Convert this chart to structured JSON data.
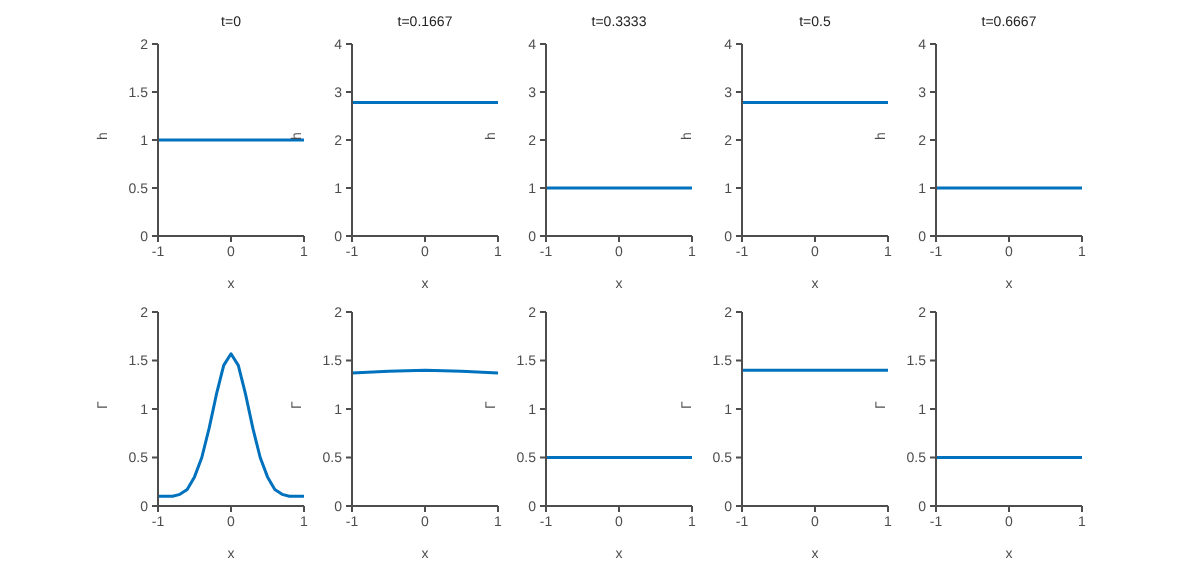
{
  "chart_data": [
    {
      "type": "line",
      "title": "t=0",
      "xlabel": "x",
      "ylabel": "h",
      "x": [
        -1,
        1
      ],
      "series": [
        {
          "color": "#0072bd",
          "values": [
            1,
            1
          ]
        }
      ],
      "xlim": [
        -1,
        1
      ],
      "xticks": [
        -1,
        0,
        1
      ],
      "ylim": [
        0,
        2
      ],
      "yticks": [
        0,
        0.5,
        1,
        1.5,
        2
      ],
      "grid": false
    },
    {
      "type": "line",
      "title": "t=0.1667",
      "xlabel": "x",
      "ylabel": "h",
      "x": [
        -1,
        1
      ],
      "series": [
        {
          "color": "#0072bd",
          "values": [
            2.78,
            2.78
          ]
        }
      ],
      "xlim": [
        -1,
        1
      ],
      "xticks": [
        -1,
        0,
        1
      ],
      "ylim": [
        0,
        4
      ],
      "yticks": [
        0,
        1,
        2,
        3,
        4
      ],
      "grid": false
    },
    {
      "type": "line",
      "title": "t=0.3333",
      "xlabel": "x",
      "ylabel": "h",
      "x": [
        -1,
        1
      ],
      "series": [
        {
          "color": "#0072bd",
          "values": [
            1,
            1
          ]
        }
      ],
      "xlim": [
        -1,
        1
      ],
      "xticks": [
        -1,
        0,
        1
      ],
      "ylim": [
        0,
        4
      ],
      "yticks": [
        0,
        1,
        2,
        3,
        4
      ],
      "grid": false
    },
    {
      "type": "line",
      "title": "t=0.5",
      "xlabel": "x",
      "ylabel": "h",
      "x": [
        -1,
        1
      ],
      "series": [
        {
          "color": "#0072bd",
          "values": [
            2.78,
            2.78
          ]
        }
      ],
      "xlim": [
        -1,
        1
      ],
      "xticks": [
        -1,
        0,
        1
      ],
      "ylim": [
        0,
        4
      ],
      "yticks": [
        0,
        1,
        2,
        3,
        4
      ],
      "grid": false
    },
    {
      "type": "line",
      "title": "t=0.6667",
      "xlabel": "x",
      "ylabel": "h",
      "x": [
        -1,
        1
      ],
      "series": [
        {
          "color": "#0072bd",
          "values": [
            1,
            1
          ]
        }
      ],
      "xlim": [
        -1,
        1
      ],
      "xticks": [
        -1,
        0,
        1
      ],
      "ylim": [
        0,
        4
      ],
      "yticks": [
        0,
        1,
        2,
        3,
        4
      ],
      "grid": false
    },
    {
      "type": "line",
      "xlabel": "x",
      "ylabel": "Γ",
      "x": [
        -1,
        -0.9,
        -0.8,
        -0.7,
        -0.6,
        -0.5,
        -0.4,
        -0.3,
        -0.2,
        -0.1,
        0,
        0.1,
        0.2,
        0.3,
        0.4,
        0.5,
        0.6,
        0.7,
        0.8,
        0.9,
        1
      ],
      "series": [
        {
          "color": "#0072bd",
          "values": [
            0.1,
            0.1,
            0.1,
            0.12,
            0.17,
            0.3,
            0.5,
            0.8,
            1.15,
            1.45,
            1.57,
            1.45,
            1.15,
            0.8,
            0.5,
            0.3,
            0.17,
            0.12,
            0.1,
            0.1,
            0.1
          ]
        }
      ],
      "xlim": [
        -1,
        1
      ],
      "xticks": [
        -1,
        0,
        1
      ],
      "ylim": [
        0,
        2
      ],
      "yticks": [
        0,
        0.5,
        1,
        1.5,
        2
      ],
      "grid": false
    },
    {
      "type": "line",
      "xlabel": "x",
      "ylabel": "Γ",
      "x": [
        -1,
        -0.5,
        0,
        0.5,
        1
      ],
      "series": [
        {
          "color": "#0072bd",
          "values": [
            1.37,
            1.39,
            1.4,
            1.39,
            1.37
          ]
        }
      ],
      "xlim": [
        -1,
        1
      ],
      "xticks": [
        -1,
        0,
        1
      ],
      "ylim": [
        0,
        2
      ],
      "yticks": [
        0,
        0.5,
        1,
        1.5,
        2
      ],
      "grid": false
    },
    {
      "type": "line",
      "xlabel": "x",
      "ylabel": "Γ",
      "x": [
        -1,
        1
      ],
      "series": [
        {
          "color": "#0072bd",
          "values": [
            0.5,
            0.5
          ]
        }
      ],
      "xlim": [
        -1,
        1
      ],
      "xticks": [
        -1,
        0,
        1
      ],
      "ylim": [
        0,
        2
      ],
      "yticks": [
        0,
        0.5,
        1,
        1.5,
        2
      ],
      "grid": false
    },
    {
      "type": "line",
      "xlabel": "x",
      "ylabel": "Γ",
      "x": [
        -1,
        1
      ],
      "series": [
        {
          "color": "#0072bd",
          "values": [
            1.4,
            1.4
          ]
        }
      ],
      "xlim": [
        -1,
        1
      ],
      "xticks": [
        -1,
        0,
        1
      ],
      "ylim": [
        0,
        2
      ],
      "yticks": [
        0,
        0.5,
        1,
        1.5,
        2
      ],
      "grid": false
    },
    {
      "type": "line",
      "xlabel": "x",
      "ylabel": "Γ",
      "x": [
        -1,
        1
      ],
      "series": [
        {
          "color": "#0072bd",
          "values": [
            0.5,
            0.5
          ]
        }
      ],
      "xlim": [
        -1,
        1
      ],
      "xticks": [
        -1,
        0,
        1
      ],
      "ylim": [
        0,
        2
      ],
      "yticks": [
        0,
        0.5,
        1,
        1.5,
        2
      ],
      "grid": false
    }
  ]
}
